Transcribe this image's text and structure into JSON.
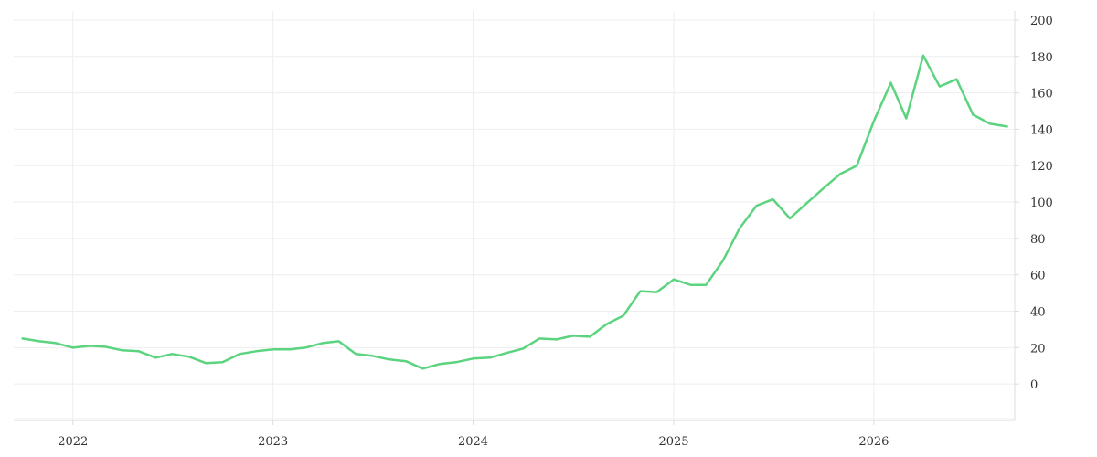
{
  "chart_data": {
    "type": "line",
    "title": "",
    "xlabel": "",
    "ylabel": "",
    "x_axis": {
      "type": "date",
      "range": [
        "2021-09-15",
        "2026-09-15"
      ],
      "ticks": [
        {
          "value": "2022-01-01",
          "label": "2022"
        },
        {
          "value": "2023-01-01",
          "label": "2023"
        },
        {
          "value": "2024-01-01",
          "label": "2024"
        },
        {
          "value": "2025-01-01",
          "label": "2025"
        },
        {
          "value": "2026-01-01",
          "label": "2026"
        }
      ]
    },
    "y_axis": {
      "position": "right",
      "range": [
        -20,
        205
      ],
      "ticks": [
        0,
        20,
        40,
        60,
        80,
        100,
        120,
        140,
        160,
        180,
        200
      ]
    },
    "grid": true,
    "series": [
      {
        "color": "#5cd47f",
        "points": [
          [
            "2021-10-01",
            25
          ],
          [
            "2021-11-01",
            23.5
          ],
          [
            "2021-12-01",
            22.5
          ],
          [
            "2022-01-01",
            20
          ],
          [
            "2022-02-01",
            21
          ],
          [
            "2022-03-01",
            20.5
          ],
          [
            "2022-04-01",
            18.5
          ],
          [
            "2022-05-01",
            18
          ],
          [
            "2022-06-01",
            14.5
          ],
          [
            "2022-07-01",
            16.5
          ],
          [
            "2022-08-01",
            15
          ],
          [
            "2022-09-01",
            11.5
          ],
          [
            "2022-10-01",
            12
          ],
          [
            "2022-11-01",
            16.5
          ],
          [
            "2022-12-01",
            18
          ],
          [
            "2023-01-01",
            19
          ],
          [
            "2023-02-01",
            19
          ],
          [
            "2023-03-01",
            20
          ],
          [
            "2023-04-01",
            22.5
          ],
          [
            "2023-05-01",
            23.5
          ],
          [
            "2023-06-01",
            16.5
          ],
          [
            "2023-07-01",
            15.5
          ],
          [
            "2023-08-01",
            13.5
          ],
          [
            "2023-09-01",
            12.5
          ],
          [
            "2023-10-01",
            8.5
          ],
          [
            "2023-11-01",
            11
          ],
          [
            "2023-12-01",
            12
          ],
          [
            "2024-01-01",
            14
          ],
          [
            "2024-02-01",
            14.5
          ],
          [
            "2024-03-01",
            17
          ],
          [
            "2024-04-01",
            19.5
          ],
          [
            "2024-05-01",
            25
          ],
          [
            "2024-06-01",
            24.5
          ],
          [
            "2024-07-01",
            26.5
          ],
          [
            "2024-08-01",
            26
          ],
          [
            "2024-09-01",
            33
          ],
          [
            "2024-10-01",
            37.5
          ],
          [
            "2024-11-01",
            51
          ],
          [
            "2024-12-01",
            50.5
          ],
          [
            "2025-01-01",
            57.5
          ],
          [
            "2025-02-01",
            54.5
          ],
          [
            "2025-03-01",
            54.5
          ],
          [
            "2025-04-01",
            68
          ],
          [
            "2025-05-01",
            85.5
          ],
          [
            "2025-06-01",
            98
          ],
          [
            "2025-07-01",
            101.5
          ],
          [
            "2025-08-01",
            91
          ],
          [
            "2025-09-01",
            99.5
          ],
          [
            "2025-10-01",
            107.5
          ],
          [
            "2025-11-01",
            115.5
          ],
          [
            "2025-12-01",
            120
          ],
          [
            "2026-01-01",
            144.5
          ],
          [
            "2026-02-01",
            165.5
          ],
          [
            "2026-03-01",
            146
          ],
          [
            "2026-04-01",
            180.5
          ],
          [
            "2026-05-01",
            163.5
          ],
          [
            "2026-06-01",
            167.5
          ],
          [
            "2026-07-01",
            148
          ],
          [
            "2026-08-01",
            143
          ],
          [
            "2026-09-01",
            141.5
          ]
        ]
      }
    ]
  }
}
